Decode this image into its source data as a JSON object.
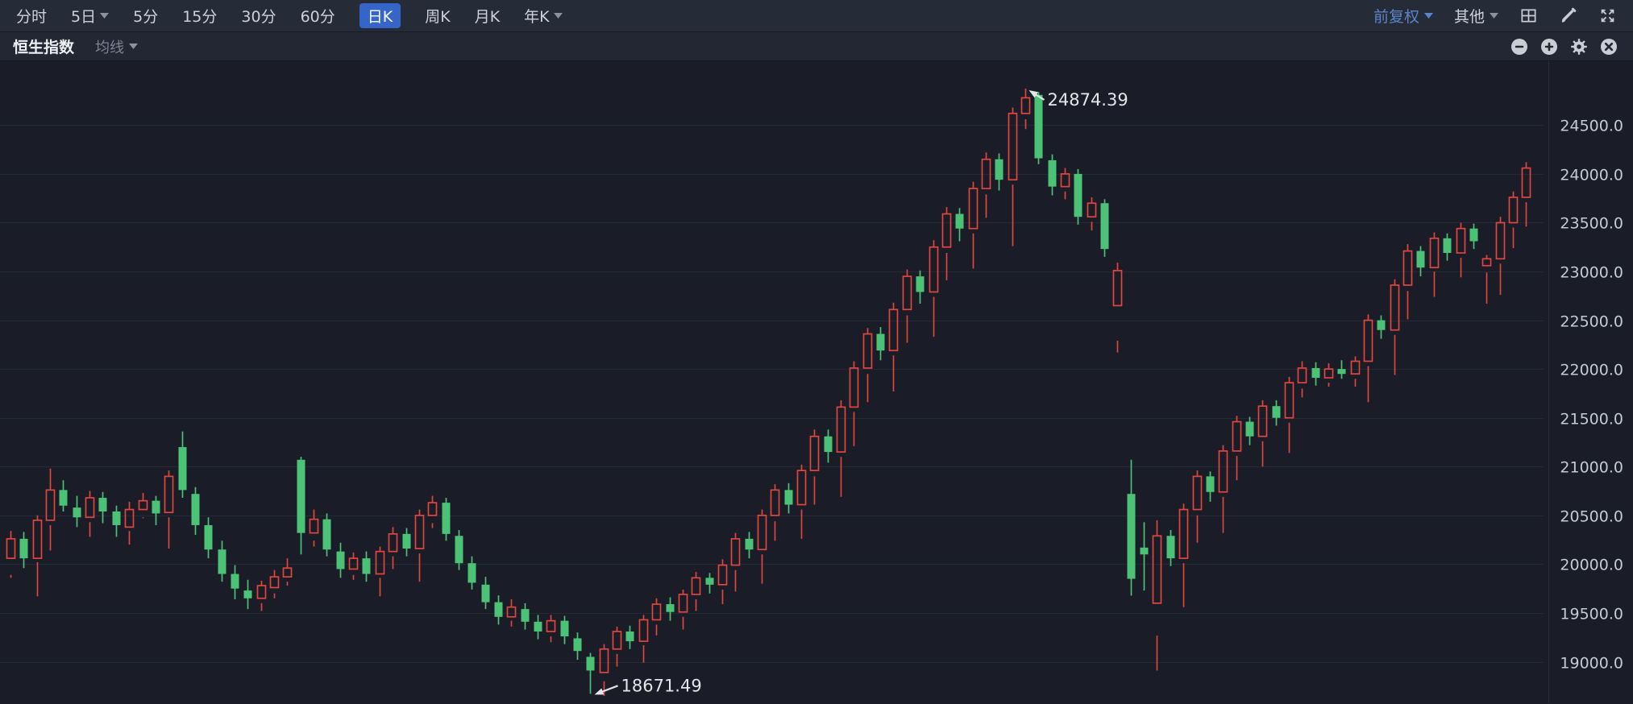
{
  "colors": {
    "up": "#e0453e",
    "down": "#4cc276",
    "accent_blue": "#3565c9",
    "link_blue": "#5b84c8",
    "grid": "#242936",
    "axis_text": "#c5c9d3",
    "annotation_text": "#e2e5ea"
  },
  "toolbar": {
    "periods": [
      {
        "label": "分时",
        "active": false,
        "dropdown": false
      },
      {
        "label": "5日",
        "active": false,
        "dropdown": true
      },
      {
        "label": "5分",
        "active": false,
        "dropdown": false
      },
      {
        "label": "15分",
        "active": false,
        "dropdown": false
      },
      {
        "label": "30分",
        "active": false,
        "dropdown": false
      },
      {
        "label": "60分",
        "active": false,
        "dropdown": false
      },
      {
        "label": "日K",
        "active": true,
        "dropdown": false
      },
      {
        "label": "周K",
        "active": false,
        "dropdown": false
      },
      {
        "label": "月K",
        "active": false,
        "dropdown": false
      },
      {
        "label": "年K",
        "active": false,
        "dropdown": true
      }
    ],
    "adjust_label": "前复权",
    "other_label": "其他",
    "icons": [
      "layout-grid-icon",
      "brush-icon",
      "fullscreen-icon"
    ]
  },
  "subheader": {
    "title": "恒生指数",
    "ma_label": "均线",
    "icons": [
      "zoom-out-icon",
      "zoom-in-icon",
      "settings-gear-icon",
      "close-icon"
    ]
  },
  "chart_data": {
    "type": "candlestick",
    "title": "恒生指数 日K",
    "up_means": "red hollow candle (close > open)",
    "down_means": "green solid candle (close < open)",
    "axis_range": [
      18575,
      25155
    ],
    "y_axis": {
      "side": "right",
      "ticks": [
        24500.0,
        24000.0,
        23500.0,
        23000.0,
        22500.0,
        22000.0,
        21500.0,
        21000.0,
        20500.0,
        20000.0,
        19500.0,
        19000.0
      ],
      "decimals": 1
    },
    "grid": "horizontal-only",
    "annotations": {
      "high": {
        "label": "24874.39",
        "value": 24874.39,
        "candle_index": 77
      },
      "low": {
        "label": "18671.49",
        "value": 18671.49,
        "candle_index": 44
      }
    },
    "ohlc_format": [
      "open",
      "high",
      "low",
      "close"
    ],
    "candles": [
      [
        20060,
        20340,
        19890,
        20260
      ],
      [
        20260,
        20330,
        19960,
        20060
      ],
      [
        20060,
        20500,
        20020,
        20450
      ],
      [
        20450,
        20980,
        20400,
        20760
      ],
      [
        20760,
        20860,
        20540,
        20600
      ],
      [
        20580,
        20700,
        20380,
        20480
      ],
      [
        20480,
        20750,
        20430,
        20680
      ],
      [
        20680,
        20740,
        20420,
        20540
      ],
      [
        20540,
        20600,
        20280,
        20400
      ],
      [
        20380,
        20640,
        20340,
        20560
      ],
      [
        20560,
        20730,
        20480,
        20650
      ],
      [
        20650,
        20700,
        20400,
        20520
      ],
      [
        20530,
        20960,
        20480,
        20900
      ],
      [
        21200,
        21360,
        20680,
        20760
      ],
      [
        20720,
        20790,
        20300,
        20400
      ],
      [
        20400,
        20480,
        20060,
        20150
      ],
      [
        20150,
        20240,
        19820,
        19900
      ],
      [
        19900,
        19990,
        19640,
        19750
      ],
      [
        19730,
        19840,
        19540,
        19650
      ],
      [
        19650,
        19830,
        19600,
        19780
      ],
      [
        19760,
        19940,
        19700,
        19870
      ],
      [
        19870,
        20060,
        19820,
        19960
      ],
      [
        21070,
        21100,
        20100,
        20320
      ],
      [
        20320,
        20560,
        20240,
        20460
      ],
      [
        20460,
        20520,
        20080,
        20150
      ],
      [
        20130,
        20220,
        19860,
        19950
      ],
      [
        19950,
        20120,
        19890,
        20060
      ],
      [
        20060,
        20130,
        19820,
        19900
      ],
      [
        19900,
        20180,
        19860,
        20130
      ],
      [
        20130,
        20380,
        20080,
        20310
      ],
      [
        20310,
        20370,
        20080,
        20160
      ],
      [
        20160,
        20560,
        20110,
        20500
      ],
      [
        20500,
        20700,
        20420,
        20630
      ],
      [
        20630,
        20680,
        20240,
        20310
      ],
      [
        20290,
        20350,
        19940,
        20010
      ],
      [
        20010,
        20080,
        19740,
        19810
      ],
      [
        19790,
        19870,
        19540,
        19610
      ],
      [
        19610,
        19680,
        19380,
        19460
      ],
      [
        19460,
        19640,
        19420,
        19560
      ],
      [
        19540,
        19600,
        19330,
        19410
      ],
      [
        19410,
        19480,
        19230,
        19310
      ],
      [
        19310,
        19480,
        19260,
        19420
      ],
      [
        19420,
        19470,
        19180,
        19260
      ],
      [
        19240,
        19300,
        19020,
        19110
      ],
      [
        19050,
        19090,
        18671.49,
        18910
      ],
      [
        18890,
        19180,
        18800,
        19130
      ],
      [
        19130,
        19360,
        19080,
        19310
      ],
      [
        19310,
        19370,
        19130,
        19210
      ],
      [
        19210,
        19480,
        19170,
        19430
      ],
      [
        19430,
        19650,
        19380,
        19590
      ],
      [
        19590,
        19660,
        19420,
        19510
      ],
      [
        19510,
        19740,
        19460,
        19690
      ],
      [
        19690,
        19920,
        19640,
        19860
      ],
      [
        19860,
        19910,
        19700,
        19790
      ],
      [
        19790,
        20050,
        19740,
        19990
      ],
      [
        19990,
        20320,
        19940,
        20260
      ],
      [
        20260,
        20330,
        20060,
        20150
      ],
      [
        20150,
        20560,
        20100,
        20500
      ],
      [
        20500,
        20820,
        20440,
        20760
      ],
      [
        20760,
        20830,
        20520,
        20610
      ],
      [
        20610,
        21020,
        20560,
        20960
      ],
      [
        20960,
        21380,
        20900,
        21310
      ],
      [
        21310,
        21380,
        21040,
        21150
      ],
      [
        21150,
        21680,
        21100,
        21610
      ],
      [
        21610,
        22080,
        21560,
        22010
      ],
      [
        22010,
        22420,
        21950,
        22360
      ],
      [
        22360,
        22430,
        22090,
        22190
      ],
      [
        22190,
        22680,
        22140,
        22610
      ],
      [
        22610,
        23020,
        22550,
        22950
      ],
      [
        22950,
        23010,
        22670,
        22790
      ],
      [
        22790,
        23320,
        22740,
        23250
      ],
      [
        23250,
        23660,
        23190,
        23590
      ],
      [
        23590,
        23650,
        23310,
        23440
      ],
      [
        23440,
        23920,
        23390,
        23850
      ],
      [
        23850,
        24220,
        23790,
        24150
      ],
      [
        24150,
        24210,
        23830,
        23940
      ],
      [
        23940,
        24680,
        23890,
        24620
      ],
      [
        24620,
        24874.39,
        24560,
        24780
      ],
      [
        24810,
        24840,
        24100,
        24160
      ],
      [
        24140,
        24200,
        23780,
        23870
      ],
      [
        23870,
        24060,
        23820,
        24000
      ],
      [
        24000,
        24050,
        23480,
        23560
      ],
      [
        23560,
        23760,
        23510,
        23700
      ],
      [
        23700,
        23740,
        23150,
        23230
      ],
      [
        22650,
        23090,
        22170,
        23010
      ],
      [
        20720,
        21070,
        19677,
        19850
      ],
      [
        20170,
        20430,
        19730,
        20100
      ],
      [
        19600,
        20450,
        19268,
        20290
      ],
      [
        20290,
        20350,
        19980,
        20060
      ],
      [
        20060,
        20620,
        20010,
        20560
      ],
      [
        20560,
        20960,
        20500,
        20900
      ],
      [
        20900,
        20950,
        20640,
        20740
      ],
      [
        20740,
        21220,
        20690,
        21160
      ],
      [
        21160,
        21520,
        21110,
        21460
      ],
      [
        21460,
        21510,
        21220,
        21310
      ],
      [
        21310,
        21680,
        21260,
        21620
      ],
      [
        21620,
        21680,
        21420,
        21500
      ],
      [
        21500,
        21920,
        21450,
        21860
      ],
      [
        21860,
        22080,
        21800,
        22010
      ],
      [
        22010,
        22070,
        21830,
        21910
      ],
      [
        21910,
        22060,
        21860,
        22000
      ],
      [
        22000,
        22090,
        21900,
        21950
      ],
      [
        21950,
        22130,
        21900,
        22080
      ],
      [
        22080,
        22560,
        22030,
        22500
      ],
      [
        22500,
        22550,
        22310,
        22400
      ],
      [
        22400,
        22920,
        22350,
        22860
      ],
      [
        22860,
        23280,
        22800,
        23210
      ],
      [
        23210,
        23260,
        22950,
        23040
      ],
      [
        23040,
        23400,
        23000,
        23340
      ],
      [
        23340,
        23390,
        23110,
        23190
      ],
      [
        23190,
        23500,
        23140,
        23440
      ],
      [
        23440,
        23490,
        23230,
        23310
      ],
      [
        23060,
        23170,
        22670,
        23130
      ],
      [
        23130,
        23560,
        23080,
        23500
      ],
      [
        23500,
        23820,
        23450,
        23760
      ],
      [
        23760,
        24120,
        23710,
        24060
      ]
    ]
  }
}
